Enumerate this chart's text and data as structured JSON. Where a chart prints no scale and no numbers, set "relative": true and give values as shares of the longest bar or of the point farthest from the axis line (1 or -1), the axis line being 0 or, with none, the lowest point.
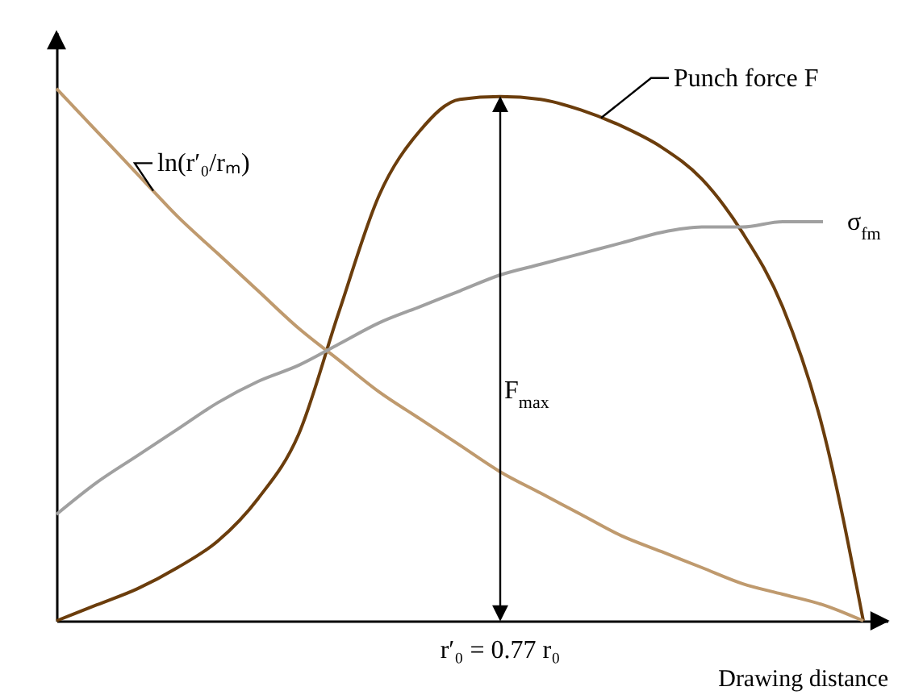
{
  "chart_data": {
    "type": "line",
    "relative": true,
    "grid": false,
    "marker": "none",
    "xlabel": "Drawing distance",
    "categories": [
      null,
      null,
      null,
      null,
      null,
      null,
      null,
      null,
      null,
      null,
      null,
      null,
      null,
      null,
      null,
      null,
      null,
      null,
      null,
      null,
      null
    ],
    "series": [
      {
        "name": "Punch force F",
        "color": "#6b3d0c",
        "values": [
          0,
          0.03,
          0.06,
          0.1,
          0.15,
          0.23,
          0.35,
          0.58,
          0.8,
          0.92,
          0.98,
          0.985,
          0.98,
          0.96,
          0.93,
          0.89,
          0.83,
          0.73,
          0.59,
          0.36,
          0
        ]
      },
      {
        "name": "ln(r′₀/rₘ)",
        "color": "#bf9a6e",
        "values": [
          1.0,
          0.92,
          0.84,
          0.76,
          0.69,
          0.62,
          0.55,
          0.49,
          0.43,
          0.38,
          0.33,
          0.28,
          0.24,
          0.2,
          0.16,
          0.13,
          0.1,
          0.07,
          0.05,
          0.03,
          0
        ]
      },
      {
        "name": "σ$_{fm}$",
        "color": "#a0a0a0",
        "values": [
          0.2,
          0.26,
          0.31,
          0.36,
          0.41,
          0.45,
          0.48,
          0.52,
          0.56,
          0.59,
          0.62,
          0.65,
          0.67,
          0.69,
          0.71,
          0.73,
          0.74,
          0.74,
          0.75,
          0.75,
          null
        ]
      }
    ],
    "annotations": [
      "F$_{max}$",
      "r′₀ = 0.77 r₀"
    ]
  }
}
